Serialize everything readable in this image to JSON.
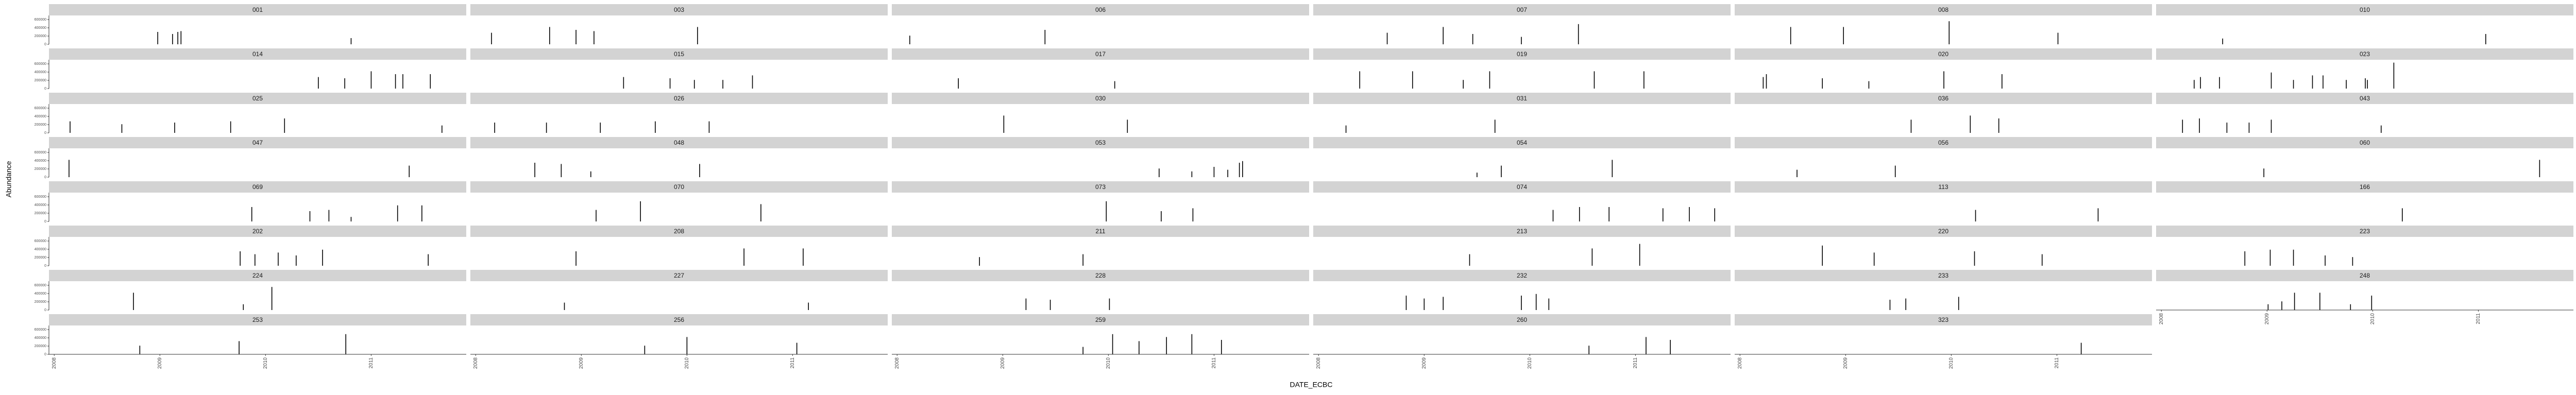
{
  "chart_data": {
    "type": "spike",
    "x_label": "DATE_ECBC",
    "y_label": "Abundance",
    "xlim": [
      2007.95,
      2011.9
    ],
    "xticks": [
      2008,
      2009,
      2010,
      2011
    ],
    "ylim": [
      0,
      700000
    ],
    "yticks": [
      0,
      200000,
      400000,
      600000
    ],
    "color": "#000000",
    "strip_color": "#d3d3d3",
    "panels": [
      {
        "title": "001",
        "x": [
          2008.98,
          2009.12,
          2009.17,
          2009.2,
          2010.81
        ],
        "values": [
          300000,
          250000,
          300000,
          320000,
          150000
        ]
      },
      {
        "title": "003",
        "x": [
          2008.15,
          2008.7,
          2008.95,
          2009.12,
          2010.1
        ],
        "values": [
          280000,
          420000,
          350000,
          320000,
          420000
        ]
      },
      {
        "title": "006",
        "x": [
          2008.12,
          2009.4
        ],
        "values": [
          210000,
          350000
        ]
      },
      {
        "title": "007",
        "x": [
          2008.65,
          2009.18,
          2009.46,
          2009.92,
          2010.46
        ],
        "values": [
          280000,
          420000,
          250000,
          180000,
          490000
        ]
      },
      {
        "title": "008",
        "x": [
          2008.48,
          2008.98,
          2009.98,
          2011.01
        ],
        "values": [
          420000,
          420000,
          560000,
          280000
        ]
      },
      {
        "title": "010",
        "x": [
          2008.58,
          2011.07
        ],
        "values": [
          140000,
          250000
        ]
      },
      {
        "title": "014",
        "x": [
          2010.5,
          2010.75,
          2011.0,
          2011.23,
          2011.3,
          2011.56
        ],
        "values": [
          280000,
          250000,
          420000,
          350000,
          350000,
          350000
        ]
      },
      {
        "title": "015",
        "x": [
          2009.4,
          2009.84,
          2010.07,
          2010.34,
          2010.62
        ],
        "values": [
          280000,
          250000,
          210000,
          210000,
          320000
        ]
      },
      {
        "title": "017",
        "x": [
          2008.58,
          2010.06
        ],
        "values": [
          250000,
          180000
        ]
      },
      {
        "title": "019",
        "x": [
          2008.39,
          2008.89,
          2009.37,
          2009.62,
          2010.61,
          2011.08
        ],
        "values": [
          420000,
          420000,
          210000,
          420000,
          420000,
          420000
        ]
      },
      {
        "title": "020",
        "x": [
          2008.22,
          2008.25,
          2008.78,
          2009.22,
          2009.93,
          2010.48
        ],
        "values": [
          280000,
          350000,
          250000,
          180000,
          420000,
          350000
        ]
      },
      {
        "title": "023",
        "x": [
          2008.31,
          2008.37,
          2008.55,
          2009.04,
          2009.25,
          2009.43,
          2009.53,
          2009.75,
          2009.93,
          2009.95,
          2010.2
        ],
        "values": [
          210000,
          280000,
          280000,
          390000,
          210000,
          320000,
          320000,
          210000,
          250000,
          210000,
          630000
        ]
      },
      {
        "title": "025",
        "x": [
          2008.15,
          2008.64,
          2009.14,
          2009.67,
          2010.18,
          2011.67
        ],
        "values": [
          280000,
          210000,
          250000,
          280000,
          350000,
          180000
        ]
      },
      {
        "title": "026",
        "x": [
          2008.18,
          2008.67,
          2009.18,
          2009.7,
          2010.21
        ],
        "values": [
          250000,
          250000,
          250000,
          280000,
          280000
        ]
      },
      {
        "title": "030",
        "x": [
          2009.01,
          2010.18
        ],
        "values": [
          420000,
          320000
        ]
      },
      {
        "title": "031",
        "x": [
          2008.26,
          2009.67
        ],
        "values": [
          180000,
          320000
        ]
      },
      {
        "title": "036",
        "x": [
          2009.62,
          2010.18,
          2010.45
        ],
        "values": [
          320000,
          420000,
          350000
        ]
      },
      {
        "title": "043",
        "x": [
          2008.2,
          2008.36,
          2008.62,
          2008.83,
          2009.04,
          2010.08
        ],
        "values": [
          320000,
          350000,
          250000,
          250000,
          320000,
          180000
        ]
      },
      {
        "title": "047",
        "x": [
          2008.14,
          2011.36
        ],
        "values": [
          420000,
          280000
        ]
      },
      {
        "title": "048",
        "x": [
          2008.56,
          2008.81,
          2009.09,
          2010.12
        ],
        "values": [
          350000,
          320000,
          140000,
          320000
        ]
      },
      {
        "title": "053",
        "x": [
          2010.48,
          2010.79,
          2011.0,
          2011.13,
          2011.24,
          2011.27
        ],
        "values": [
          210000,
          140000,
          250000,
          180000,
          350000,
          390000
        ]
      },
      {
        "title": "054",
        "x": [
          2009.5,
          2009.73,
          2010.78
        ],
        "values": [
          110000,
          280000,
          420000
        ]
      },
      {
        "title": "056",
        "x": [
          2008.54,
          2009.47
        ],
        "values": [
          180000,
          280000
        ]
      },
      {
        "title": "060",
        "x": [
          2008.97,
          2011.58
        ],
        "values": [
          210000,
          420000
        ]
      },
      {
        "title": "069",
        "x": [
          2009.87,
          2010.42,
          2010.6,
          2010.81,
          2011.25,
          2011.48
        ],
        "values": [
          350000,
          250000,
          280000,
          110000,
          390000,
          390000
        ]
      },
      {
        "title": "070",
        "x": [
          2009.14,
          2009.56,
          2010.7
        ],
        "values": [
          280000,
          490000,
          420000
        ]
      },
      {
        "title": "073",
        "x": [
          2009.98,
          2010.5,
          2010.8
        ],
        "values": [
          490000,
          250000,
          320000
        ]
      },
      {
        "title": "074",
        "x": [
          2010.22,
          2010.47,
          2010.75,
          2011.26,
          2011.51,
          2011.75
        ],
        "values": [
          280000,
          350000,
          350000,
          320000,
          350000,
          320000
        ]
      },
      {
        "title": "113",
        "x": [
          2010.23,
          2011.39
        ],
        "values": [
          280000,
          320000
        ]
      },
      {
        "title": "166",
        "x": [
          2010.28
        ],
        "values": [
          320000
        ]
      },
      {
        "title": "202",
        "x": [
          2009.76,
          2009.9,
          2010.12,
          2010.29,
          2010.54,
          2011.54
        ],
        "values": [
          350000,
          280000,
          320000,
          250000,
          390000,
          280000
        ]
      },
      {
        "title": "208",
        "x": [
          2008.95,
          2010.54,
          2011.1
        ],
        "values": [
          350000,
          420000,
          420000
        ]
      },
      {
        "title": "211",
        "x": [
          2008.78,
          2009.76
        ],
        "values": [
          210000,
          280000
        ]
      },
      {
        "title": "213",
        "x": [
          2009.43,
          2010.59,
          2011.04
        ],
        "values": [
          280000,
          420000,
          530000
        ]
      },
      {
        "title": "220",
        "x": [
          2008.78,
          2009.27,
          2010.22,
          2010.86
        ],
        "values": [
          490000,
          320000,
          350000,
          280000
        ]
      },
      {
        "title": "223",
        "x": [
          2008.79,
          2009.03,
          2009.25,
          2009.55,
          2009.81
        ],
        "values": [
          350000,
          390000,
          390000,
          250000,
          210000
        ]
      },
      {
        "title": "224",
        "x": [
          2008.75,
          2009.79,
          2010.06
        ],
        "values": [
          420000,
          140000,
          560000
        ]
      },
      {
        "title": "227",
        "x": [
          2008.84,
          2011.15
        ],
        "values": [
          180000,
          180000
        ]
      },
      {
        "title": "228",
        "x": [
          2009.22,
          2009.45,
          2010.01
        ],
        "values": [
          280000,
          250000,
          280000
        ]
      },
      {
        "title": "232",
        "x": [
          2008.83,
          2009.0,
          2009.18,
          2009.92,
          2010.06,
          2010.18
        ],
        "values": [
          350000,
          280000,
          320000,
          350000,
          390000,
          280000
        ]
      },
      {
        "title": "233",
        "x": [
          2009.42,
          2009.57,
          2010.07
        ],
        "values": [
          250000,
          280000,
          320000
        ]
      },
      {
        "title": "248",
        "x": [
          2009.01,
          2009.14,
          2009.26,
          2009.5,
          2009.79,
          2009.99
        ],
        "values": [
          140000,
          210000,
          420000,
          420000,
          140000,
          350000
        ]
      },
      {
        "title": "253",
        "x": [
          2008.81,
          2009.75,
          2010.76
        ],
        "values": [
          210000,
          320000,
          490000
        ]
      },
      {
        "title": "256",
        "x": [
          2009.6,
          2010.0,
          2011.04
        ],
        "values": [
          210000,
          420000,
          280000
        ]
      },
      {
        "title": "259",
        "x": [
          2009.76,
          2010.04,
          2010.29,
          2010.55,
          2010.79,
          2011.07
        ],
        "values": [
          180000,
          490000,
          320000,
          420000,
          490000,
          350000
        ]
      },
      {
        "title": "260",
        "x": [
          2010.56,
          2011.1,
          2011.33
        ],
        "values": [
          210000,
          420000,
          350000
        ]
      },
      {
        "title": "323",
        "x": [
          2011.23
        ],
        "values": [
          280000
        ]
      }
    ]
  }
}
